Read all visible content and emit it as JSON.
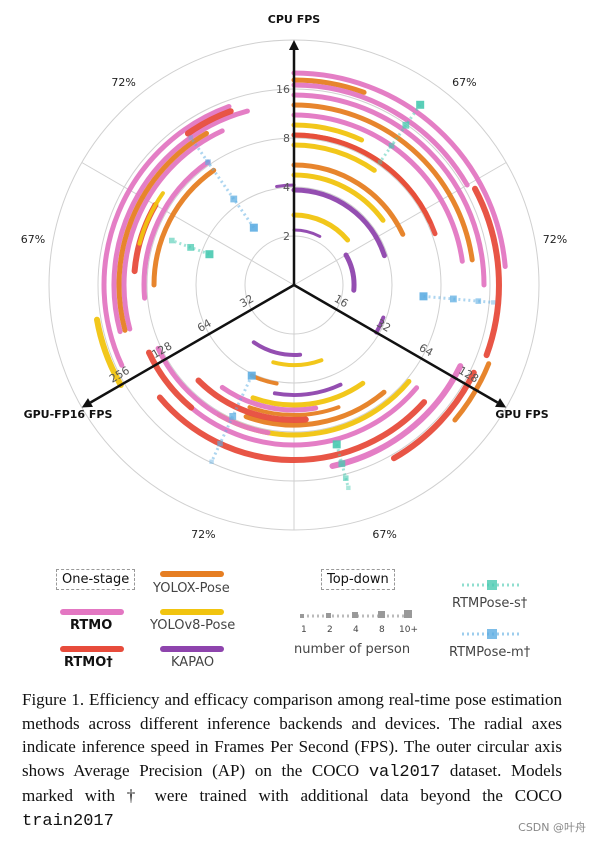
{
  "chart_data": {
    "type": "radar-arc",
    "axes": [
      {
        "name": "CPU FPS",
        "ticks": [
          "2",
          "4",
          "8",
          "16"
        ]
      },
      {
        "name": "GPU FPS",
        "ticks": [
          "16",
          "32",
          "64",
          "128"
        ]
      },
      {
        "name": "GPU-FP16 FPS",
        "ticks": [
          "32",
          "64",
          "128",
          "256"
        ]
      }
    ],
    "ap_labels": [
      "67%",
      "72%",
      "67%",
      "72%",
      "67%",
      "72%"
    ],
    "models": [
      {
        "name": "YOLOX-Pose",
        "color": "#e67e22",
        "group": "One-stage"
      },
      {
        "name": "YOLOv8-Pose",
        "color": "#f1c40f",
        "group": "One-stage"
      },
      {
        "name": "KAPAO",
        "color": "#8e44ad",
        "group": "One-stage"
      },
      {
        "name": "RTMO",
        "color": "#e377c2",
        "group": "One-stage"
      },
      {
        "name": "RTMO†",
        "color": "#e74c3c",
        "group": "One-stage"
      },
      {
        "name": "RTMPose-s†",
        "color": "#48c9b0",
        "group": "Top-down"
      },
      {
        "name": "RTMPose-m†",
        "color": "#5dade2",
        "group": "Top-down"
      }
    ],
    "person_counts": [
      "1",
      "2",
      "4",
      "8",
      "10+"
    ]
  },
  "legend": {
    "one_stage": "One-stage",
    "top_down": "Top-down",
    "rtmo": "RTMO",
    "rtmo_dagger": "RTMO†",
    "yolox": "YOLOX-Pose",
    "yolov8": "YOLOv8-Pose",
    "kapao": "KAPAO",
    "rtmpose_s": "RTMPose-s†",
    "rtmpose_m": "RTMPose-m†",
    "num_person": "number of person",
    "sizes": [
      "1",
      "2",
      "4",
      "8",
      "10+"
    ]
  },
  "caption": {
    "part1": "Figure 1.  Efficiency and efficacy comparison among real-time pose estimation methods across different inference backends and devices. The radial axes indicate inference speed in Frames Per Second (FPS). The outer circular axis shows Average Precision (AP) on the COCO ",
    "code1": "val2017",
    "part2": " dataset. Models marked with † were trained with additional data beyond the COCO ",
    "code2": "train2017"
  },
  "watermark": "CSDN @叶舟"
}
